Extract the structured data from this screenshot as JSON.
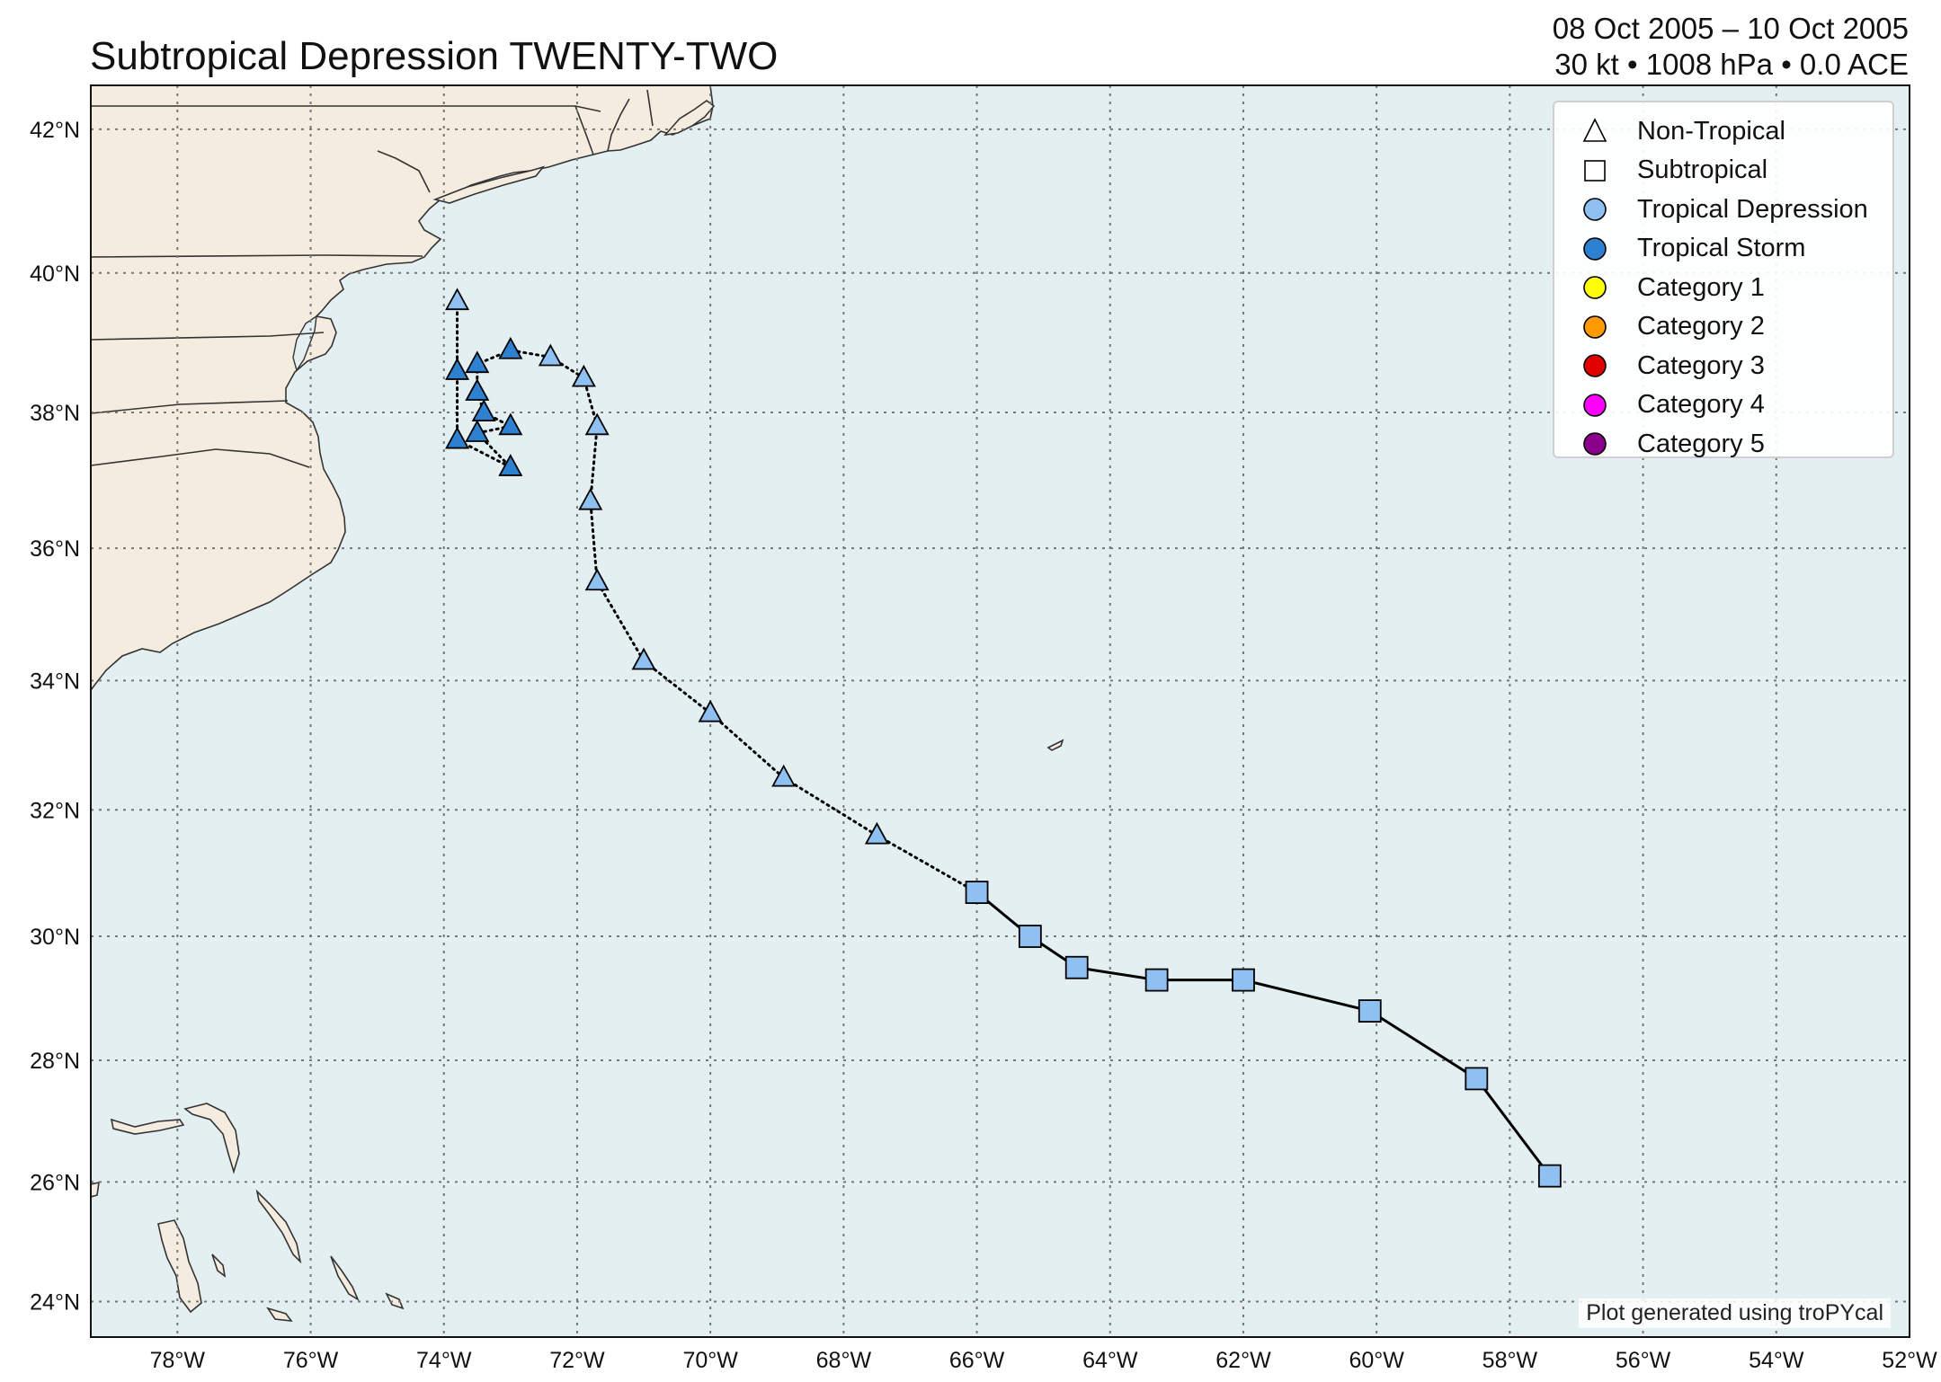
{
  "header": {
    "title": "Subtropical Depression TWENTY-TWO",
    "date_range": "08 Oct 2005 – 10 Oct 2005",
    "stats": "30 kt • 1008 hPa • 0.0 ACE"
  },
  "axes": {
    "lon_range": [
      -79.3,
      -52
    ],
    "lat_range": [
      23.4,
      42.6
    ],
    "lon_ticks": [
      {
        "value": -78,
        "label": "78°W"
      },
      {
        "value": -76,
        "label": "76°W"
      },
      {
        "value": -74,
        "label": "74°W"
      },
      {
        "value": -72,
        "label": "72°W"
      },
      {
        "value": -70,
        "label": "70°W"
      },
      {
        "value": -68,
        "label": "68°W"
      },
      {
        "value": -66,
        "label": "66°W"
      },
      {
        "value": -64,
        "label": "64°W"
      },
      {
        "value": -62,
        "label": "62°W"
      },
      {
        "value": -60,
        "label": "60°W"
      },
      {
        "value": -58,
        "label": "58°W"
      },
      {
        "value": -56,
        "label": "56°W"
      },
      {
        "value": -54,
        "label": "54°W"
      },
      {
        "value": -52,
        "label": "52°W"
      }
    ],
    "lat_ticks": [
      {
        "value": 24,
        "label": "24°N"
      },
      {
        "value": 26,
        "label": "26°N"
      },
      {
        "value": 28,
        "label": "28°N"
      },
      {
        "value": 30,
        "label": "30°N"
      },
      {
        "value": 32,
        "label": "32°N"
      },
      {
        "value": 34,
        "label": "34°N"
      },
      {
        "value": 36,
        "label": "36°N"
      },
      {
        "value": 38,
        "label": "38°N"
      },
      {
        "value": 40,
        "label": "40°N"
      },
      {
        "value": 42,
        "label": "42°N"
      }
    ],
    "grid": true
  },
  "colors": {
    "ocean": "#e3eff1",
    "land": "#f5ece0",
    "coast": "#333333",
    "tropical_depression": "#8fc0f2",
    "tropical_storm": "#2e80d0",
    "category_1": "#ffff00",
    "category_2": "#ff9a00",
    "category_3": "#e00000",
    "category_4": "#ff00ff",
    "category_5": "#8b008b"
  },
  "legend": {
    "items": [
      {
        "label": "Non-Tropical",
        "marker": "triangle",
        "color": "#ffffff"
      },
      {
        "label": "Subtropical",
        "marker": "square",
        "color": "#ffffff"
      },
      {
        "label": "Tropical Depression",
        "marker": "circle",
        "color": "#8fc0f2"
      },
      {
        "label": "Tropical Storm",
        "marker": "circle",
        "color": "#2e80d0"
      },
      {
        "label": "Category 1",
        "marker": "circle",
        "color": "#ffff00"
      },
      {
        "label": "Category 2",
        "marker": "circle",
        "color": "#ff9a00"
      },
      {
        "label": "Category 3",
        "marker": "circle",
        "color": "#e00000"
      },
      {
        "label": "Category 4",
        "marker": "circle",
        "color": "#ff00ff"
      },
      {
        "label": "Category 5",
        "marker": "circle",
        "color": "#8b008b"
      }
    ]
  },
  "chart_data": {
    "type": "scatter",
    "track": [
      {
        "lon": -57.4,
        "lat": 26.1,
        "type": "subtropical",
        "intensity": "TD"
      },
      {
        "lon": -58.5,
        "lat": 27.7,
        "type": "subtropical",
        "intensity": "TD"
      },
      {
        "lon": -60.1,
        "lat": 28.8,
        "type": "subtropical",
        "intensity": "TD"
      },
      {
        "lon": -62.0,
        "lat": 29.3,
        "type": "subtropical",
        "intensity": "TD"
      },
      {
        "lon": -63.3,
        "lat": 29.3,
        "type": "subtropical",
        "intensity": "TD"
      },
      {
        "lon": -64.5,
        "lat": 29.5,
        "type": "subtropical",
        "intensity": "TD"
      },
      {
        "lon": -65.2,
        "lat": 30.0,
        "type": "subtropical",
        "intensity": "TD"
      },
      {
        "lon": -66.0,
        "lat": 30.7,
        "type": "subtropical",
        "intensity": "TD"
      },
      {
        "lon": -67.5,
        "lat": 31.6,
        "type": "non-tropical",
        "intensity": "TD"
      },
      {
        "lon": -68.9,
        "lat": 32.5,
        "type": "non-tropical",
        "intensity": "TD"
      },
      {
        "lon": -70.0,
        "lat": 33.5,
        "type": "non-tropical",
        "intensity": "TD"
      },
      {
        "lon": -71.0,
        "lat": 34.3,
        "type": "non-tropical",
        "intensity": "TD"
      },
      {
        "lon": -71.7,
        "lat": 35.5,
        "type": "non-tropical",
        "intensity": "TD"
      },
      {
        "lon": -71.8,
        "lat": 36.7,
        "type": "non-tropical",
        "intensity": "TD"
      },
      {
        "lon": -71.7,
        "lat": 37.8,
        "type": "non-tropical",
        "intensity": "TD"
      },
      {
        "lon": -71.9,
        "lat": 38.5,
        "type": "non-tropical",
        "intensity": "TD"
      },
      {
        "lon": -72.4,
        "lat": 38.8,
        "type": "non-tropical",
        "intensity": "TD"
      },
      {
        "lon": -73.0,
        "lat": 38.9,
        "type": "non-tropical",
        "intensity": "TS"
      },
      {
        "lon": -73.5,
        "lat": 38.7,
        "type": "non-tropical",
        "intensity": "TS"
      },
      {
        "lon": -73.5,
        "lat": 38.3,
        "type": "non-tropical",
        "intensity": "TS"
      },
      {
        "lon": -73.4,
        "lat": 38.0,
        "type": "non-tropical",
        "intensity": "TS"
      },
      {
        "lon": -73.0,
        "lat": 37.8,
        "type": "non-tropical",
        "intensity": "TS"
      },
      {
        "lon": -73.5,
        "lat": 37.7,
        "type": "non-tropical",
        "intensity": "TS"
      },
      {
        "lon": -73.0,
        "lat": 37.2,
        "type": "non-tropical",
        "intensity": "TS"
      },
      {
        "lon": -73.8,
        "lat": 37.6,
        "type": "non-tropical",
        "intensity": "TS"
      },
      {
        "lon": -73.8,
        "lat": 38.6,
        "type": "non-tropical",
        "intensity": "TS"
      },
      {
        "lon": -73.8,
        "lat": 39.6,
        "type": "non-tropical",
        "intensity": "TD"
      }
    ]
  },
  "footer": {
    "credit": "Plot generated using troPYcal"
  }
}
